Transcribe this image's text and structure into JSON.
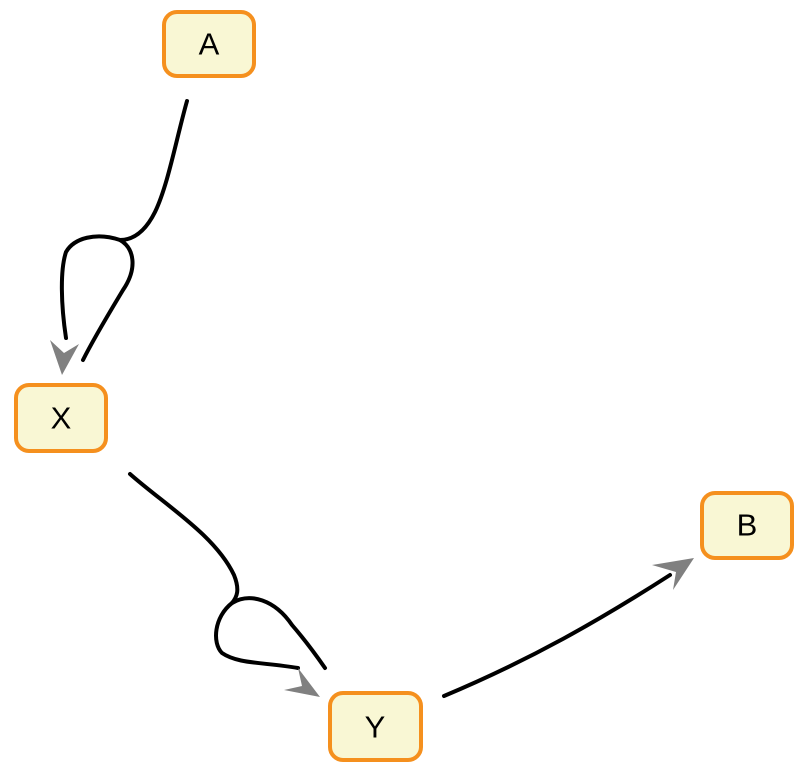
{
  "diagram": {
    "nodes": [
      {
        "id": "A",
        "label": "A"
      },
      {
        "id": "X",
        "label": "X"
      },
      {
        "id": "Y",
        "label": "Y"
      },
      {
        "id": "B",
        "label": "B"
      }
    ],
    "edges": [
      {
        "from": "A",
        "to": "X"
      },
      {
        "from": "X",
        "to": "Y"
      },
      {
        "from": "Y",
        "to": "B"
      }
    ],
    "colors": {
      "node_fill": "#f9f7d4",
      "node_border": "#f5901e",
      "edge_stroke": "#000000",
      "arrowhead": "#808080"
    }
  }
}
